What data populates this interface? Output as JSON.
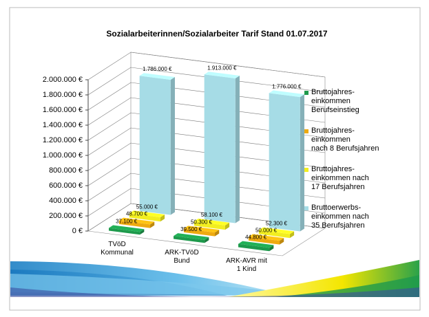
{
  "chart_data": {
    "type": "bar3d",
    "title": "Sozialarbeiterinnen/Sozialarbeiter Tarif Stand 01.07.2017",
    "categories": [
      "TVöD\nKommunal",
      "ARK-TVöD\nBund",
      "ARK-AVR mit\n1 Kind"
    ],
    "series": [
      {
        "name": "Bruttojahres-\neinkommen\nBerufseinstieg",
        "color": "#1e9a4c",
        "values": [
          37100,
          39500,
          44800
        ],
        "value_labels": [
          "37.100 €",
          "39.500 €",
          "44.800 €"
        ]
      },
      {
        "name": "Bruttojahres-\neinkommen\nnach 8 Berufsjahren",
        "color": "#eeaa10",
        "values": [
          48700,
          50300,
          50000
        ],
        "value_labels": [
          "48.700 €",
          "50.300 €",
          "50.000 €"
        ]
      },
      {
        "name": "Bruttojahres-\neinkommen nach\n17 Berufsjahren",
        "color": "#f2ee20",
        "values": [
          55000,
          58100,
          52300
        ],
        "value_labels": [
          "55.000 €",
          "58.100 €",
          "52.300 €"
        ]
      },
      {
        "name": "Bruttoerwerbs-\neinkommen nach\n35 Berufsjahren",
        "color": "#a6dce6",
        "values": [
          1786000,
          1913000,
          1776000
        ],
        "value_labels": [
          "1.786.000 €",
          "1.913.000 €",
          "1.776.000 €"
        ]
      }
    ],
    "ylim": [
      0,
      2000000
    ],
    "yticks": [
      {
        "value": 0,
        "label": "0 €"
      },
      {
        "value": 200000,
        "label": "200.000 €"
      },
      {
        "value": 400000,
        "label": "400.000 €"
      },
      {
        "value": 600000,
        "label": "600.000 €"
      },
      {
        "value": 800000,
        "label": "800.000 €"
      },
      {
        "value": 1000000,
        "label": "1.000.000 €"
      },
      {
        "value": 1200000,
        "label": "1.200.000 €"
      },
      {
        "value": 1400000,
        "label": "1.400.000 €"
      },
      {
        "value": 1600000,
        "label": "1.600.000 €"
      },
      {
        "value": 1800000,
        "label": "1.800.000 €"
      },
      {
        "value": 2000000,
        "label": "2.000.000 €"
      }
    ],
    "grid": true,
    "legend": "right"
  }
}
